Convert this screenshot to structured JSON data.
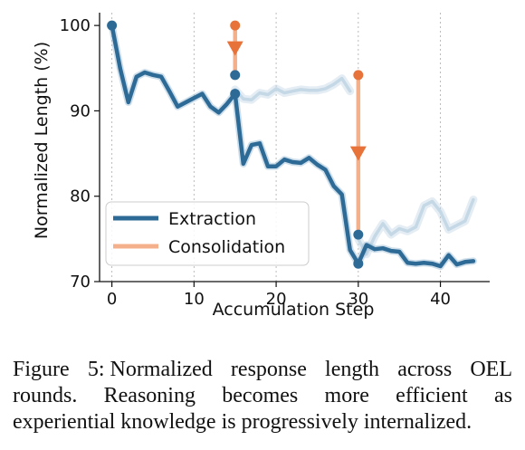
{
  "chart_data": {
    "type": "line",
    "title": "",
    "xlabel": "Accumulation Step",
    "ylabel": "Normalized Length (%)",
    "xlim": [
      -1.5,
      46
    ],
    "ylim": [
      70,
      101.5
    ],
    "xticks": [
      0,
      10,
      20,
      30,
      40
    ],
    "yticks": [
      70,
      80,
      90,
      100
    ],
    "grid": "vertical dotted lines",
    "legend_position": "lower-left",
    "series": [
      {
        "name": "Extraction",
        "color": "#2e6a96",
        "x": [
          0,
          1,
          2,
          3,
          4,
          5,
          6,
          7,
          8,
          9,
          10,
          11,
          12,
          13,
          14,
          15,
          16,
          17,
          18,
          19,
          20,
          21,
          22,
          23,
          24,
          25,
          26,
          27,
          28,
          29,
          30,
          31,
          32,
          33,
          34,
          35,
          36,
          37,
          38,
          39,
          40,
          41,
          42,
          43,
          44
        ],
        "y": [
          100,
          95,
          91,
          94,
          94.5,
          94.2,
          94,
          92.3,
          90.5,
          91,
          91.5,
          92,
          90.5,
          89.8,
          90.8,
          92,
          83.8,
          86,
          86.2,
          83.5,
          83.5,
          84.3,
          84,
          83.9,
          84.5,
          83.7,
          83.1,
          81.2,
          80.2,
          73.7,
          72.1,
          74.3,
          73.8,
          73.9,
          73.6,
          73.5,
          72.2,
          72.1,
          72.2,
          72.1,
          71.8,
          73.1,
          72,
          72.3,
          72.4
        ]
      },
      {
        "name": "Consolidation",
        "color": "#f4b08a",
        "segments": [
          {
            "x": 15,
            "from": 100,
            "to": 94.2
          },
          {
            "x": 30,
            "from": 94.2,
            "to": 75.5
          }
        ]
      }
    ],
    "alternative_trajectory": {
      "color": "#c5d8e6",
      "segments": [
        {
          "x": [
            15,
            16,
            17,
            18,
            19,
            20,
            21,
            22,
            23,
            24,
            25,
            26,
            27,
            28,
            29
          ],
          "y": [
            92.5,
            91.4,
            91.3,
            92.1,
            91.9,
            92.6,
            92.1,
            92.3,
            92.5,
            92.4,
            92.4,
            92.6,
            93.1,
            93.8,
            92.3
          ]
        },
        {
          "x": [
            30,
            31,
            32,
            33,
            34,
            35,
            36,
            37,
            38,
            39,
            40,
            41,
            42,
            43,
            44
          ],
          "y": [
            75,
            73.2,
            75.3,
            76.8,
            75.5,
            76.2,
            75.9,
            76.4,
            78.9,
            79.4,
            78.2,
            76.1,
            76.6,
            77.1,
            79.6
          ]
        }
      ]
    },
    "markers": {
      "extraction_points": [
        {
          "x": 0,
          "y": 100
        },
        {
          "x": 15,
          "y": 94.2
        },
        {
          "x": 15,
          "y": 92
        },
        {
          "x": 30,
          "y": 75.5
        },
        {
          "x": 30,
          "y": 72.1
        }
      ],
      "consolidation_starts": [
        {
          "x": 15,
          "y": 100
        },
        {
          "x": 30,
          "y": 94.2
        }
      ],
      "consolidation_arrows": [
        {
          "x": 15,
          "y": 97.3
        },
        {
          "x": 30,
          "y": 85
        }
      ],
      "accent_color": "#e8733a"
    }
  },
  "caption": {
    "label": "Figure 5:",
    "text": "Normalized response length across OEL rounds. Reasoning becomes more efficient as experiential knowledge is progressively internalized."
  }
}
